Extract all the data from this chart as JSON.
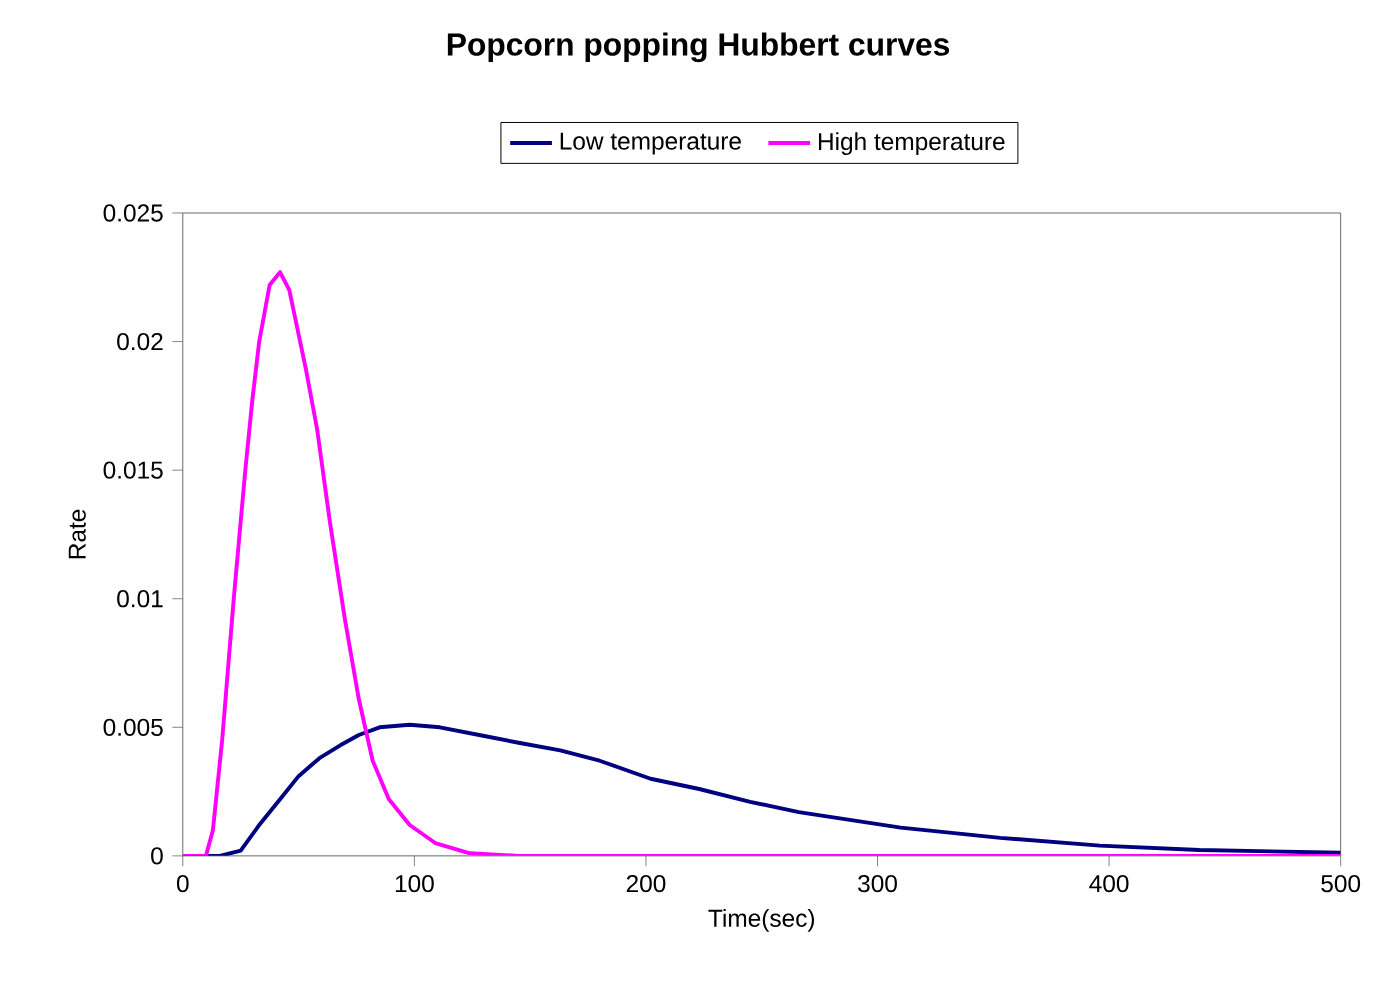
{
  "chart_data": {
    "type": "line",
    "title": "Popcorn popping Hubbert curves",
    "xlabel": "Time(sec)",
    "ylabel": "Rate",
    "xlim": [
      0,
      500
    ],
    "ylim": [
      0,
      0.025
    ],
    "xticks": [
      0,
      100,
      200,
      300,
      400,
      500
    ],
    "yticks": [
      0,
      0.005,
      0.01,
      0.015,
      0.02,
      0.025
    ],
    "legend": "top",
    "grid": false,
    "series": [
      {
        "name": "Low temperature",
        "color": "#000080",
        "x": [
          0,
          16,
          25,
          33,
          42,
          50,
          59,
          68,
          76,
          85,
          98,
          111,
          128,
          145,
          163,
          180,
          202,
          223,
          245,
          266,
          288,
          310,
          353,
          396,
          439,
          500
        ],
        "values": [
          0,
          0,
          0.0002,
          0.0012,
          0.0022,
          0.0031,
          0.0038,
          0.0043,
          0.0047,
          0.005,
          0.0051,
          0.005,
          0.0047,
          0.0044,
          0.0041,
          0.0037,
          0.003,
          0.0026,
          0.0021,
          0.0017,
          0.0014,
          0.0011,
          0.0007,
          0.0004,
          0.00023,
          0.00012
        ]
      },
      {
        "name": "High temperature",
        "color": "#ff00ff",
        "x": [
          0,
          10,
          13,
          17,
          22,
          27,
          30,
          33,
          37.5,
          42,
          46,
          53,
          58,
          63.5,
          70,
          76,
          82,
          89,
          98,
          109,
          124,
          145,
          200,
          300,
          400,
          500
        ],
        "values": [
          0,
          0,
          0.001,
          0.0045,
          0.01,
          0.015,
          0.0177,
          0.02,
          0.0222,
          0.0227,
          0.022,
          0.019,
          0.0166,
          0.013,
          0.0092,
          0.0061,
          0.0037,
          0.0022,
          0.0012,
          0.0005,
          0.0001,
          0,
          0,
          0,
          0,
          0
        ]
      }
    ]
  }
}
